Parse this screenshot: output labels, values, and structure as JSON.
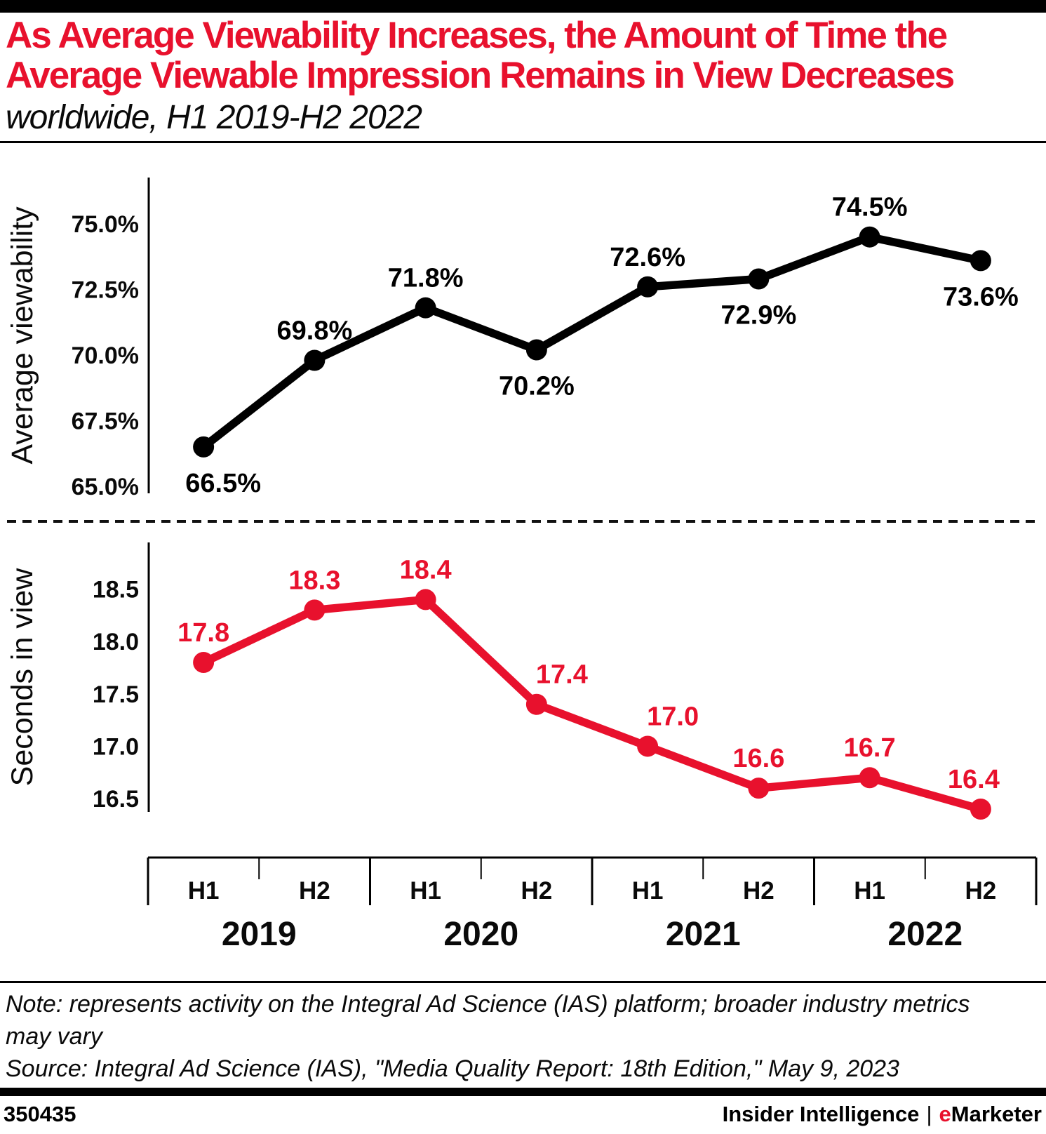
{
  "header": {
    "title_line1": "As Average Viewability Increases, the Amount of Time the",
    "title_line2": "Average Viewable Impression Remains in View Decreases",
    "subtitle": "worldwide, H1 2019-H2 2022"
  },
  "chart_data": [
    {
      "type": "line",
      "name": "average-viewability",
      "ylabel": "Average viewability",
      "color": "#000000",
      "x": [
        "H1 2019",
        "H2 2019",
        "H1 2020",
        "H2 2020",
        "H1 2021",
        "H2 2021",
        "H1 2022",
        "H2 2022"
      ],
      "values": [
        66.5,
        69.8,
        71.8,
        70.2,
        72.6,
        72.9,
        74.5,
        73.6
      ],
      "data_labels": [
        "66.5%",
        "69.8%",
        "71.8%",
        "70.2%",
        "72.6%",
        "72.9%",
        "74.5%",
        "73.6%"
      ],
      "label_side": [
        "below",
        "above",
        "above",
        "below",
        "above",
        "below",
        "above",
        "below"
      ],
      "yticks": [
        "75.0%",
        "72.5%",
        "70.0%",
        "67.5%",
        "65.0%"
      ],
      "ytick_values": [
        75.0,
        72.5,
        70.0,
        67.5,
        65.0
      ],
      "ylim": [
        64.5,
        75.7
      ],
      "grid": false,
      "legend": "none"
    },
    {
      "type": "line",
      "name": "seconds-in-view",
      "ylabel": "Seconds in view",
      "color": "#e8112d",
      "x": [
        "H1 2019",
        "H2 2019",
        "H1 2020",
        "H2 2020",
        "H1 2021",
        "H2 2021",
        "H1 2022",
        "H2 2022"
      ],
      "values": [
        17.8,
        18.3,
        18.4,
        17.4,
        17.0,
        16.6,
        16.7,
        16.4
      ],
      "data_labels": [
        "17.8",
        "18.3",
        "18.4",
        "17.4",
        "17.0",
        "16.6",
        "16.7",
        "16.4"
      ],
      "label_side": [
        "above",
        "above",
        "above",
        "above",
        "above",
        "above",
        "above",
        "above"
      ],
      "yticks": [
        "18.5",
        "18.0",
        "17.5",
        "17.0",
        "16.5"
      ],
      "ytick_values": [
        18.5,
        18.0,
        17.5,
        17.0,
        16.5
      ],
      "ylim": [
        16.1,
        18.7
      ],
      "grid": false,
      "legend": "none"
    }
  ],
  "xaxis": {
    "half_labels": [
      "H1",
      "H2",
      "H1",
      "H2",
      "H1",
      "H2",
      "H1",
      "H2"
    ],
    "year_labels": [
      "2019",
      "2020",
      "2021",
      "2022"
    ]
  },
  "note": "Note: represents activity on the Integral Ad Science (IAS) platform; broader industry metrics may vary",
  "source": "Source: Integral Ad Science (IAS), \"Media Quality Report: 18th Edition,\" May 9, 2023",
  "footer": {
    "chart_id": "350435",
    "brand_left": "Insider Intelligence",
    "separator": "|",
    "brand_e": "e",
    "brand_rest": "Marketer"
  },
  "colors": {
    "accent_red": "#e8112d",
    "black": "#000000"
  }
}
